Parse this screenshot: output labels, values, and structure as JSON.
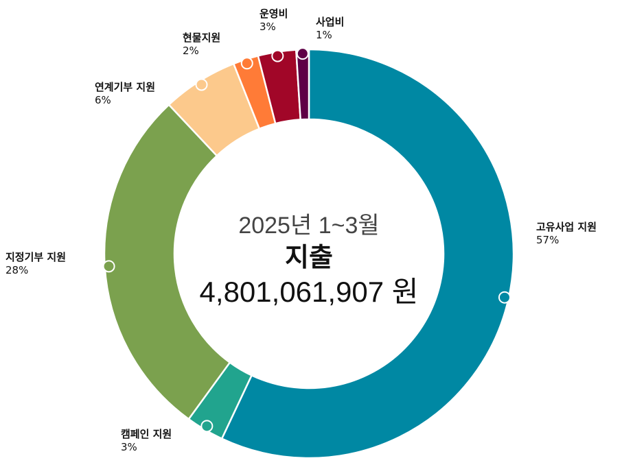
{
  "chart_data": {
    "type": "pie",
    "variant": "donut",
    "center": {
      "period": "2025년 1~3월",
      "label": "지출",
      "total": "4,801,061,907 원"
    },
    "slices": [
      {
        "name": "고유사업 지원",
        "percent_label": "57%",
        "value": 57,
        "color": "#0088A3"
      },
      {
        "name": "캠페인 지원",
        "percent_label": "3%",
        "value": 3,
        "color": "#21A48E"
      },
      {
        "name": "지정기부 지원",
        "percent_label": "28%",
        "value": 28,
        "color": "#7BA14E"
      },
      {
        "name": "연계기부 지원",
        "percent_label": "6%",
        "value": 6,
        "color": "#FCC98C"
      },
      {
        "name": "현물지원",
        "percent_label": "2%",
        "value": 2,
        "color": "#FF7B37"
      },
      {
        "name": "운영비",
        "percent_label": "3%",
        "value": 3,
        "color": "#A10628"
      },
      {
        "name": "사업비",
        "percent_label": "1%",
        "value": 1,
        "color": "#5E0046"
      }
    ],
    "legend": "none"
  }
}
